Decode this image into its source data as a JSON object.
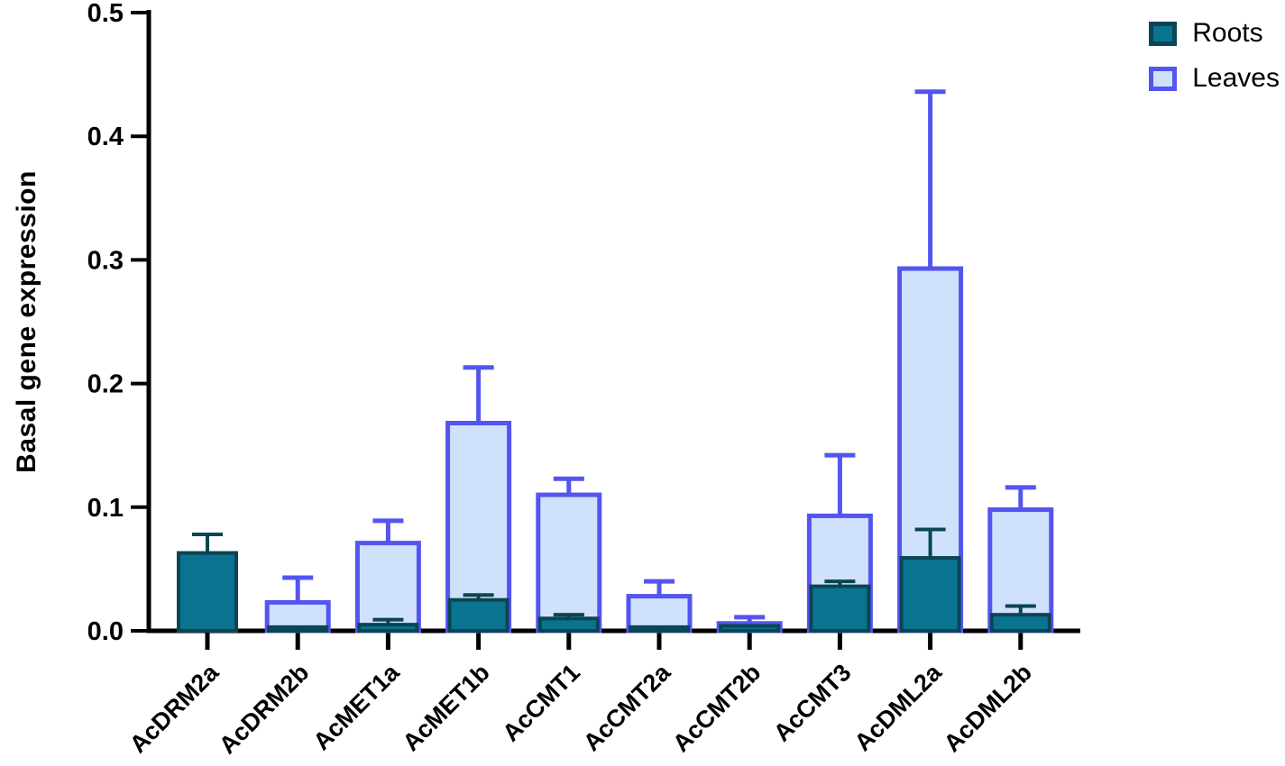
{
  "chart_data": {
    "type": "bar",
    "grouping": "superimposed",
    "title": "",
    "xlabel": "",
    "ylabel": "Basal gene expression",
    "ylim": [
      0,
      0.5
    ],
    "y_ticks": [
      "0.0",
      "0.1",
      "0.2",
      "0.3",
      "0.4",
      "0.5"
    ],
    "grid": false,
    "legend_position": "top-right",
    "error_bars": "upper",
    "categories": [
      "AcDRM2a",
      "AcDRM2b",
      "AcMET1a",
      "AcMET1b",
      "AcCMT1",
      "AcCMT2a",
      "AcCMT2b",
      "AcCMT3",
      "AcDML2a",
      "AcDML2b"
    ],
    "series": [
      {
        "name": "Roots",
        "fill": "#0a7490",
        "border": "#0b4554",
        "values": [
          0.063,
          0.003,
          0.005,
          0.025,
          0.01,
          0.003,
          0.004,
          0.036,
          0.059,
          0.013
        ],
        "errors": [
          0.015,
          0,
          0.004,
          0.004,
          0.003,
          0,
          0,
          0.004,
          0.023,
          0.007
        ]
      },
      {
        "name": "Leaves",
        "fill": "#d0e2fb",
        "border": "#5455f0",
        "values": [
          0,
          0.023,
          0.071,
          0.168,
          0.11,
          0.028,
          0.006,
          0.093,
          0.293,
          0.098
        ],
        "errors": [
          0,
          0.02,
          0.018,
          0.045,
          0.013,
          0.012,
          0.005,
          0.049,
          0.143,
          0.018
        ]
      }
    ],
    "axis_color": "#000000",
    "tick_label_color": "#000000"
  }
}
